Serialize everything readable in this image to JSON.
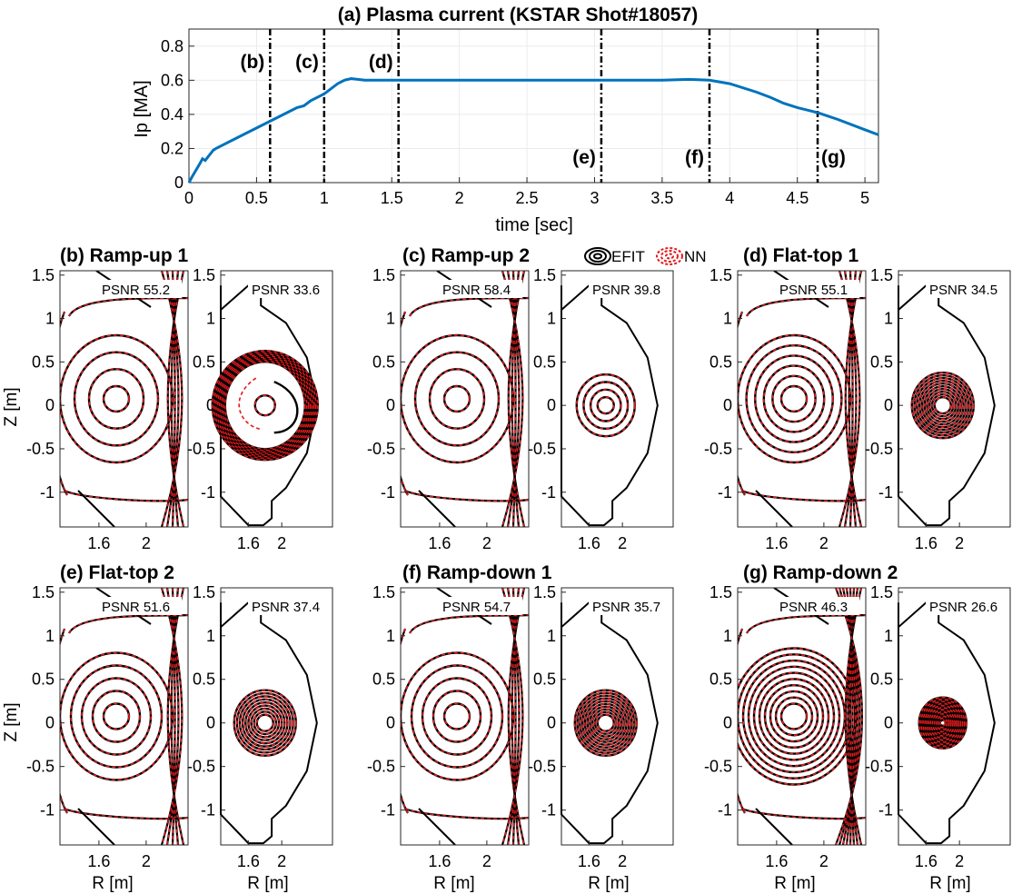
{
  "chart_data": [
    {
      "id": "a",
      "type": "line",
      "title": "(a) Plasma current (KSTAR Shot#18057)",
      "xlabel": "time [sec]",
      "ylabel": "Ip [MA]",
      "xlim": [
        0,
        5.1
      ],
      "ylim": [
        0,
        0.9
      ],
      "xticks": [
        0,
        0.5,
        1,
        1.5,
        2,
        2.5,
        3,
        3.5,
        4,
        4.5,
        5
      ],
      "xtick_labels": [
        "0",
        "0.5",
        "1",
        "1.5",
        "2",
        "2.5",
        "3",
        "3.5",
        "4",
        "4.5",
        "5"
      ],
      "yticks": [
        0,
        0.2,
        0.4,
        0.6,
        0.8
      ],
      "ytick_labels": [
        "0",
        "0.2",
        "0.4",
        "0.6",
        "0.8"
      ],
      "grid": true,
      "line_color": "#0072BD",
      "series": [
        {
          "name": "Ip",
          "x": [
            0,
            0.02,
            0.05,
            0.08,
            0.1,
            0.12,
            0.14,
            0.16,
            0.18,
            0.2,
            0.3,
            0.4,
            0.5,
            0.6,
            0.7,
            0.8,
            0.85,
            0.9,
            1.0,
            1.05,
            1.1,
            1.15,
            1.2,
            1.3,
            1.5,
            2.0,
            2.5,
            3.0,
            3.5,
            3.7,
            3.85,
            4.0,
            4.2,
            4.3,
            4.4,
            4.5,
            4.65,
            4.8,
            5.0,
            5.1
          ],
          "y": [
            0,
            0.03,
            0.07,
            0.11,
            0.14,
            0.13,
            0.15,
            0.17,
            0.19,
            0.2,
            0.24,
            0.28,
            0.32,
            0.36,
            0.4,
            0.44,
            0.45,
            0.48,
            0.52,
            0.55,
            0.58,
            0.6,
            0.61,
            0.6,
            0.6,
            0.6,
            0.6,
            0.6,
            0.6,
            0.605,
            0.6,
            0.58,
            0.53,
            0.5,
            0.465,
            0.44,
            0.41,
            0.37,
            0.31,
            0.28
          ]
        }
      ],
      "markers": [
        {
          "label": "(b)",
          "t": 0.6,
          "label_pos": "top"
        },
        {
          "label": "(c)",
          "t": 1.0,
          "label_pos": "top"
        },
        {
          "label": "(d)",
          "t": 1.55,
          "label_pos": "top"
        },
        {
          "label": "(e)",
          "t": 3.05,
          "label_pos": "bottom"
        },
        {
          "label": "(f)",
          "t": 3.85,
          "label_pos": "bottom"
        },
        {
          "label": "(g)",
          "t": 4.65,
          "label_pos": "bottom-right"
        }
      ]
    },
    {
      "id": "equilibria",
      "type": "contour",
      "legend": [
        {
          "name": "EFIT",
          "color": "#000000",
          "style": "solid"
        },
        {
          "name": "NN",
          "color": "#e41a1c",
          "style": "dashed"
        }
      ],
      "common": {
        "zticks": [
          -1,
          -0.5,
          0,
          0.5,
          1,
          1.5
        ],
        "ztick_labels": [
          "-1",
          "-0.5",
          "0",
          "0.5",
          "1",
          "1.5"
        ],
        "rticks": [
          1.6,
          2
        ],
        "rtick_labels": [
          "1.6",
          "2"
        ],
        "ylabel": "Z [m]",
        "xlabel": "R [m]"
      },
      "panels": [
        {
          "id": "b",
          "title": "(b) Ramp-up 1",
          "psnr_full": "PSNR 55.2",
          "psnr_inner": "PSNR 33.6",
          "full_contours": 4,
          "inner_contours": 4,
          "style": "ramp-up-1"
        },
        {
          "id": "c",
          "title": "(c) Ramp-up 2",
          "psnr_full": "PSNR 58.4",
          "psnr_inner": "PSNR 39.8",
          "full_contours": 4,
          "inner_contours": 4
        },
        {
          "id": "d",
          "title": "(d) Flat-top 1",
          "psnr_full": "PSNR 55.1",
          "psnr_inner": "PSNR 34.5",
          "full_contours": 6,
          "inner_contours": 10
        },
        {
          "id": "e",
          "title": "(e) Flat-top 2",
          "psnr_full": "PSNR 51.6",
          "psnr_inner": "PSNR 37.4",
          "full_contours": 5,
          "inner_contours": 9
        },
        {
          "id": "f",
          "title": "(f) Ramp-down 1",
          "psnr_full": "PSNR 54.7",
          "psnr_inner": "PSNR 35.7",
          "full_contours": 5,
          "inner_contours": 10
        },
        {
          "id": "g",
          "title": "(g) Ramp-down 2",
          "psnr_full": "PSNR 46.3",
          "psnr_inner": "PSNR 26.6",
          "full_contours": 10,
          "inner_contours": 12
        }
      ]
    }
  ]
}
